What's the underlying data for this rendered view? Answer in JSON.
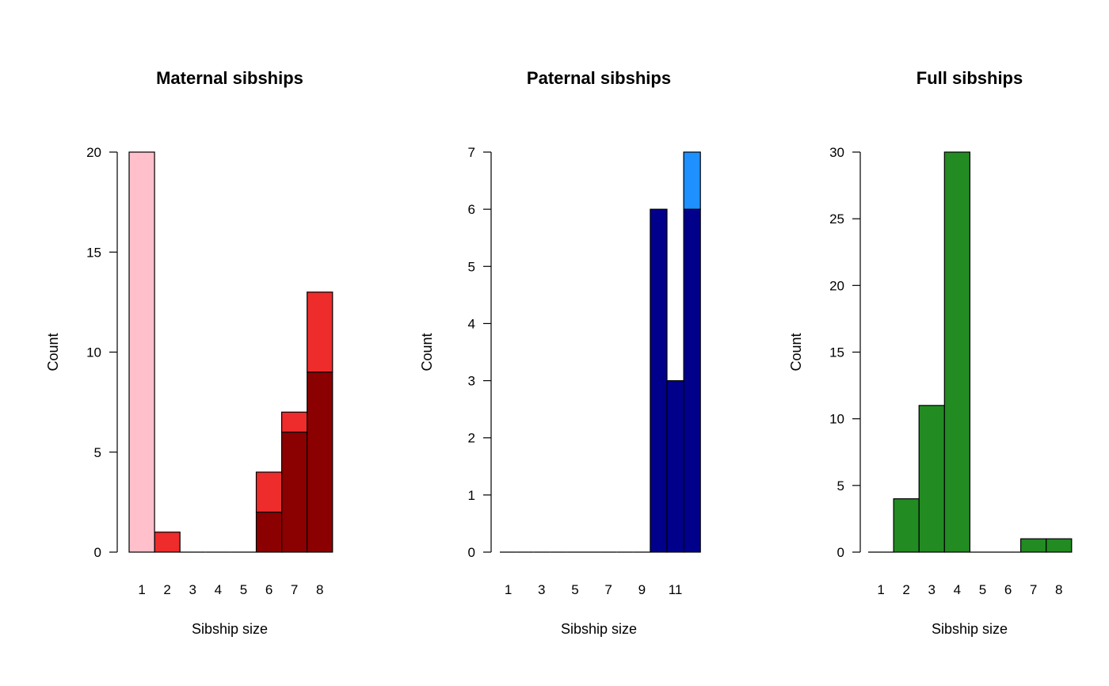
{
  "chart_data": [
    {
      "type": "bar",
      "stacked": true,
      "title": "Maternal sibships",
      "xlabel": "Sibship size",
      "ylabel": "Count",
      "ylim": [
        0,
        20
      ],
      "yticks": [
        0,
        5,
        10,
        15,
        20
      ],
      "categories": [
        "1",
        "2",
        "3",
        "4",
        "5",
        "6",
        "7",
        "8"
      ],
      "xtick_labels": [
        "1",
        "2",
        "3",
        "4",
        "5",
        "6",
        "7",
        "8"
      ],
      "series": [
        {
          "color": "#8B0000",
          "values": [
            0,
            0,
            0,
            0,
            0,
            2,
            6,
            9
          ]
        },
        {
          "color": "#EE2C2C",
          "values": [
            0,
            1,
            0,
            0,
            0,
            2,
            1,
            4
          ]
        },
        {
          "color": "#FFC0CB",
          "values": [
            20,
            0,
            0,
            0,
            0,
            0,
            0,
            0
          ]
        }
      ]
    },
    {
      "type": "bar",
      "stacked": true,
      "title": "Paternal sibships",
      "xlabel": "Sibship size",
      "ylabel": "Count",
      "ylim": [
        0,
        7
      ],
      "yticks": [
        0,
        1,
        2,
        3,
        4,
        5,
        6,
        7
      ],
      "categories": [
        "1",
        "2",
        "3",
        "4",
        "5",
        "6",
        "7",
        "8",
        "9",
        "10",
        "11",
        "12"
      ],
      "xtick_labels": [
        "1",
        "",
        "3",
        "",
        "5",
        "",
        "7",
        "",
        "9",
        "",
        "11",
        ""
      ],
      "series": [
        {
          "color": "#00008B",
          "values": [
            0,
            0,
            0,
            0,
            0,
            0,
            0,
            0,
            0,
            6,
            3,
            6
          ]
        },
        {
          "color": "#1E90FF",
          "values": [
            0,
            0,
            0,
            0,
            0,
            0,
            0,
            0,
            0,
            0,
            0,
            1
          ]
        }
      ]
    },
    {
      "type": "bar",
      "stacked": false,
      "title": "Full sibships",
      "xlabel": "Sibship size",
      "ylabel": "Count",
      "ylim": [
        0,
        30
      ],
      "yticks": [
        0,
        5,
        10,
        15,
        20,
        25,
        30
      ],
      "categories": [
        "1",
        "2",
        "3",
        "4",
        "5",
        "6",
        "7",
        "8"
      ],
      "xtick_labels": [
        "1",
        "2",
        "3",
        "4",
        "5",
        "6",
        "7",
        "8"
      ],
      "series": [
        {
          "color": "#228B22",
          "values": [
            0,
            4,
            11,
            30,
            0,
            0,
            1,
            1
          ]
        }
      ]
    }
  ]
}
